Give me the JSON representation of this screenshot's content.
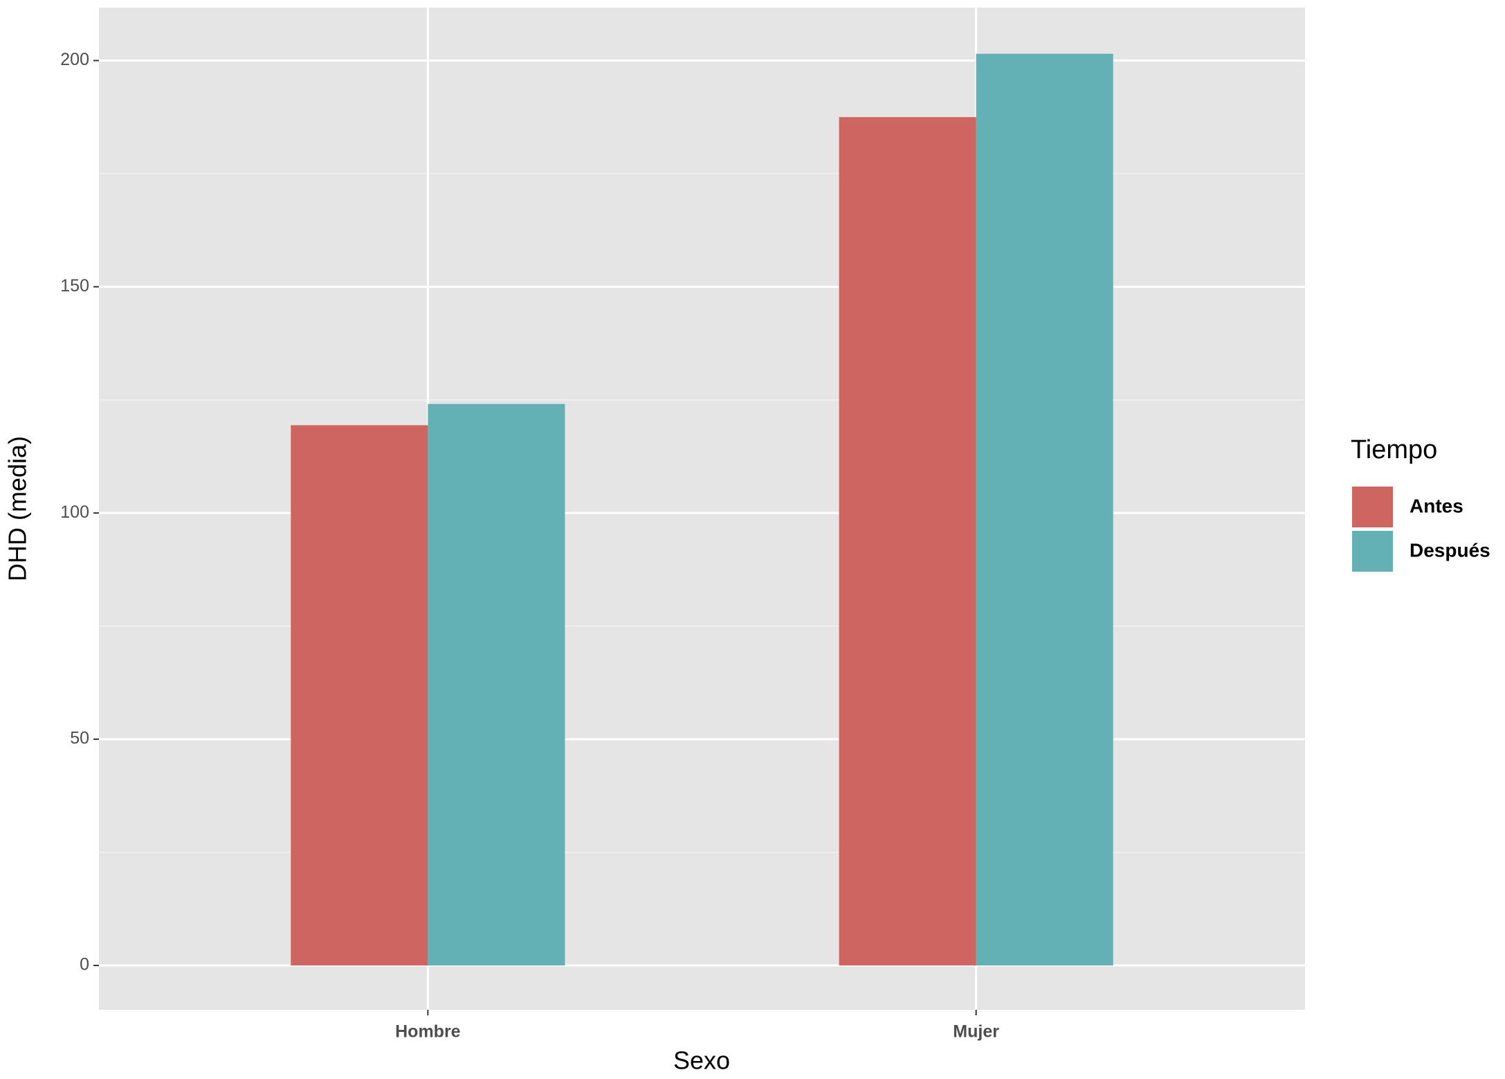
{
  "chart_data": {
    "type": "bar",
    "x_label": "Sexo",
    "y_label": "DHD (media)",
    "categories": [
      "Hombre",
      "Mujer"
    ],
    "series": [
      {
        "name": "Antes",
        "color": "#cf6560",
        "values": [
          119.4,
          187.5
        ]
      },
      {
        "name": "Después",
        "color": "#63b0b5",
        "values": [
          124.1,
          201.5
        ]
      }
    ],
    "legend_title": "Tiempo",
    "legend_position": "right",
    "ylim": [
      -9.8,
      211.7
    ],
    "yticks": [
      0,
      50,
      100,
      150,
      200
    ],
    "grid": true
  }
}
